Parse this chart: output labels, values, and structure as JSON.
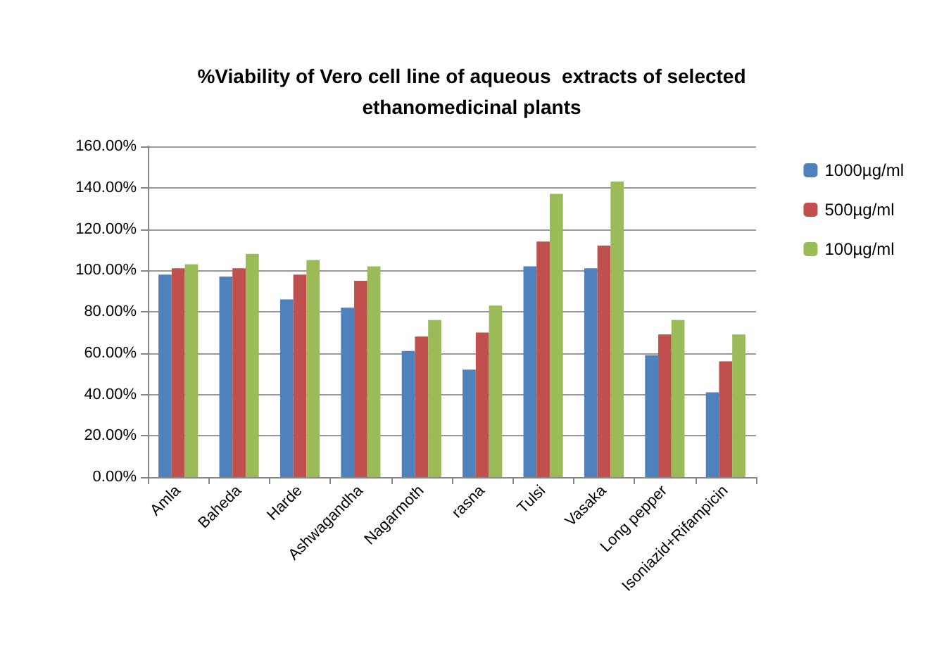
{
  "chart_data": {
    "type": "bar",
    "title": "%Viability of Vero cell line of aqueous  extracts of selected\nethanomedicinal plants",
    "categories": [
      "Amla",
      "Baheda",
      "Harde",
      "Ashwagandha",
      "Nagarmoth",
      "rasna",
      "Tulsi",
      "Vasaka",
      "Long pepper",
      "Isoniazid+Rifampicin"
    ],
    "series": [
      {
        "name": "1000µg/ml",
        "color": "#4f81bd",
        "values": [
          98,
          97,
          86,
          82,
          61,
          52,
          102,
          101,
          59,
          41
        ]
      },
      {
        "name": "500µg/ml",
        "color": "#c0504d",
        "values": [
          101,
          101,
          98,
          95,
          68,
          70,
          114,
          112,
          69,
          56
        ]
      },
      {
        "name": "100µg/ml",
        "color": "#9bbb59",
        "values": [
          103,
          108,
          105,
          102,
          76,
          83,
          137,
          143,
          76,
          69
        ]
      }
    ],
    "ylim": [
      0,
      160
    ],
    "yticks": [
      {
        "value": 0,
        "label": "0.00%"
      },
      {
        "value": 20,
        "label": "20.00%"
      },
      {
        "value": 40,
        "label": "40.00%"
      },
      {
        "value": 60,
        "label": "60.00%"
      },
      {
        "value": 80,
        "label": "80.00%"
      },
      {
        "value": 100,
        "label": "100.00%"
      },
      {
        "value": 120,
        "label": "120.00%"
      },
      {
        "value": 140,
        "label": "140.00%"
      },
      {
        "value": 160,
        "label": "160.00%"
      }
    ],
    "grid": "y",
    "legend": "top right"
  }
}
